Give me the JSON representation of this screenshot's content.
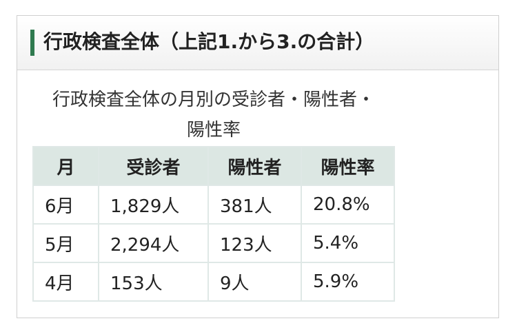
{
  "header": {
    "title": "行政検査全体（上記1.から3.の合計）"
  },
  "table": {
    "caption": "行政検査全体の月別の受診者・陽性者・陽性率",
    "columns": [
      "月",
      "受診者",
      "陽性者",
      "陽性率"
    ],
    "rows": [
      [
        "6月",
        "1,829人",
        "381人",
        "20.8%"
      ],
      [
        "5月",
        "2,294人",
        "123人",
        "5.4%"
      ],
      [
        "4月",
        "153人",
        "9人",
        "5.9%"
      ]
    ]
  }
}
